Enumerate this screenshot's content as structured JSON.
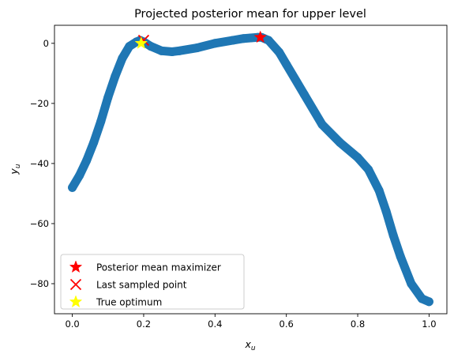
{
  "chart_data": {
    "type": "scatter",
    "title": "Projected posterior mean for upper level",
    "xlabel_base": "x",
    "xlabel_sub": "u",
    "ylabel_base": "y",
    "ylabel_sub": "u",
    "xlim": [
      -0.05,
      1.05
    ],
    "ylim": [
      -90,
      6
    ],
    "xticks": [
      0.0,
      0.2,
      0.4,
      0.6,
      0.8,
      1.0
    ],
    "xtick_labels": [
      "0.0",
      "0.2",
      "0.4",
      "0.6",
      "0.8",
      "1.0"
    ],
    "yticks": [
      0,
      -20,
      -40,
      -60,
      -80
    ],
    "ytick_labels": [
      "0",
      "−20",
      "−40",
      "−60",
      "−80"
    ],
    "grid": false,
    "legend_position": "lower-left",
    "series": [
      {
        "kind": "curve",
        "color": "#1f77b4",
        "x": [
          0.0,
          0.02,
          0.04,
          0.06,
          0.08,
          0.1,
          0.12,
          0.14,
          0.16,
          0.18,
          0.19,
          0.2,
          0.22,
          0.25,
          0.28,
          0.3,
          0.35,
          0.4,
          0.45,
          0.48,
          0.5,
          0.52,
          0.53,
          0.55,
          0.58,
          0.6,
          0.65,
          0.7,
          0.75,
          0.8,
          0.83,
          0.86,
          0.88,
          0.9,
          0.92,
          0.95,
          0.98,
          1.0
        ],
        "y": [
          -48,
          -44,
          -39,
          -33,
          -26,
          -18,
          -11,
          -5,
          -1,
          0.5,
          1,
          0.5,
          -1,
          -2.5,
          -2.8,
          -2.5,
          -1.5,
          0,
          1,
          1.6,
          1.8,
          2,
          2,
          1,
          -3,
          -7,
          -17,
          -27,
          -33,
          -38,
          -42,
          -49,
          -56,
          -64,
          -71,
          -80,
          -85,
          -86
        ]
      }
    ],
    "markers": [
      {
        "name": "Posterior mean maximizer",
        "shape": "star",
        "color": "#ff0000",
        "x": 0.527,
        "y": 2
      },
      {
        "name": "Last sampled point",
        "shape": "x",
        "color": "#ff0000",
        "x": 0.2,
        "y": 1
      },
      {
        "name": "True optimum",
        "shape": "star",
        "color": "#ffff00",
        "x": 0.193,
        "y": 0
      }
    ]
  }
}
